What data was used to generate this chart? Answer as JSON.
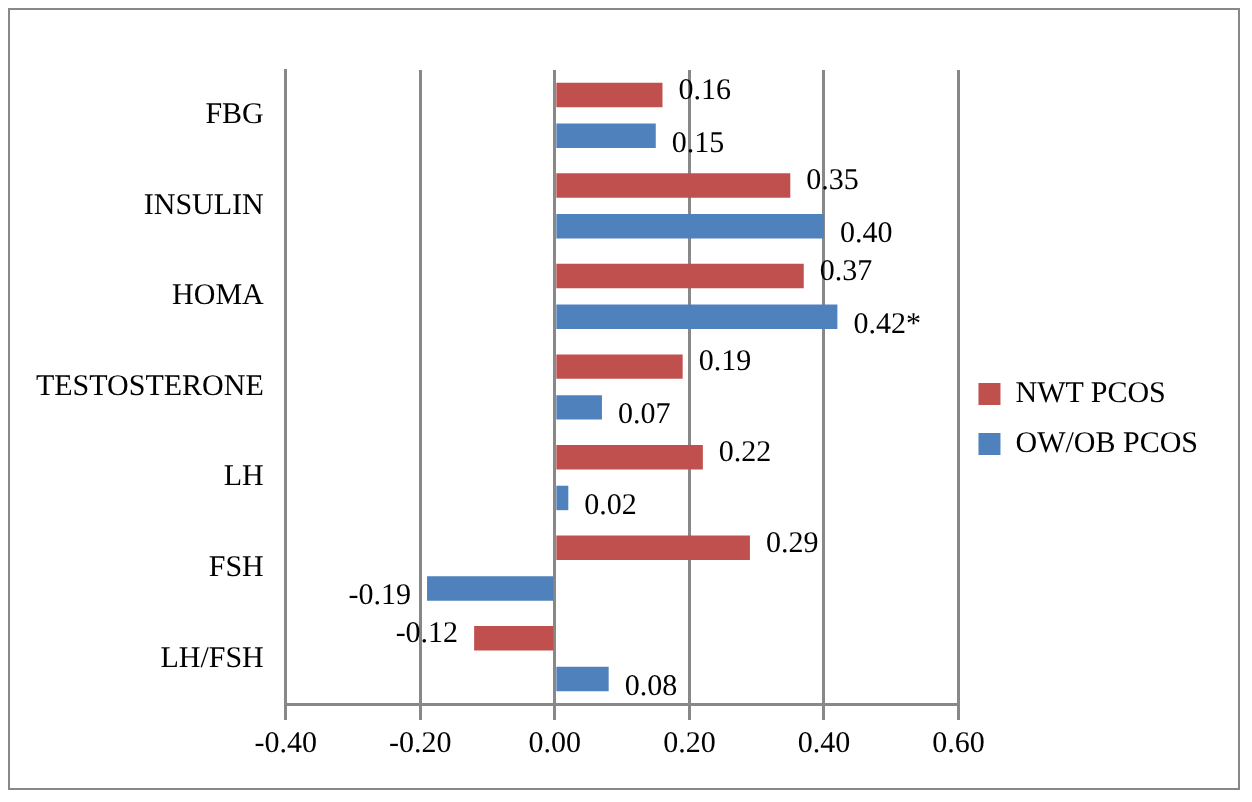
{
  "chart_data": {
    "type": "bar",
    "orientation": "horizontal",
    "categories": [
      "FBG",
      "INSULIN",
      "HOMA",
      "TESTOSTERONE",
      "LH",
      "FSH",
      "LH/FSH"
    ],
    "series": [
      {
        "name": "NWT PCOS",
        "color": "#c0504d",
        "values": [
          0.16,
          0.35,
          0.37,
          0.19,
          0.22,
          0.29,
          -0.12
        ],
        "value_labels": [
          "0.16",
          "0.35",
          "0.37",
          "0.19",
          "0.22",
          "0.29",
          "-0.12"
        ]
      },
      {
        "name": "OW/OB PCOS",
        "color": "#4f81bd",
        "values": [
          0.15,
          0.4,
          0.42,
          0.07,
          0.02,
          -0.19,
          0.08
        ],
        "value_labels": [
          "0.15",
          "0.40",
          "0.42*",
          "0.07",
          "0.02",
          "-0.19",
          "0.08"
        ]
      }
    ],
    "xlim": [
      -0.4,
      0.6
    ],
    "xticks": [
      {
        "value": -0.4,
        "label": "-0.40"
      },
      {
        "value": -0.2,
        "label": "-0.20"
      },
      {
        "value": 0,
        "label": "0.00"
      },
      {
        "value": 0.2,
        "label": "0.20"
      },
      {
        "value": 0.4,
        "label": "0.40"
      },
      {
        "value": 0.6,
        "label": "0.60"
      }
    ],
    "grid": "x",
    "legend": "right"
  }
}
